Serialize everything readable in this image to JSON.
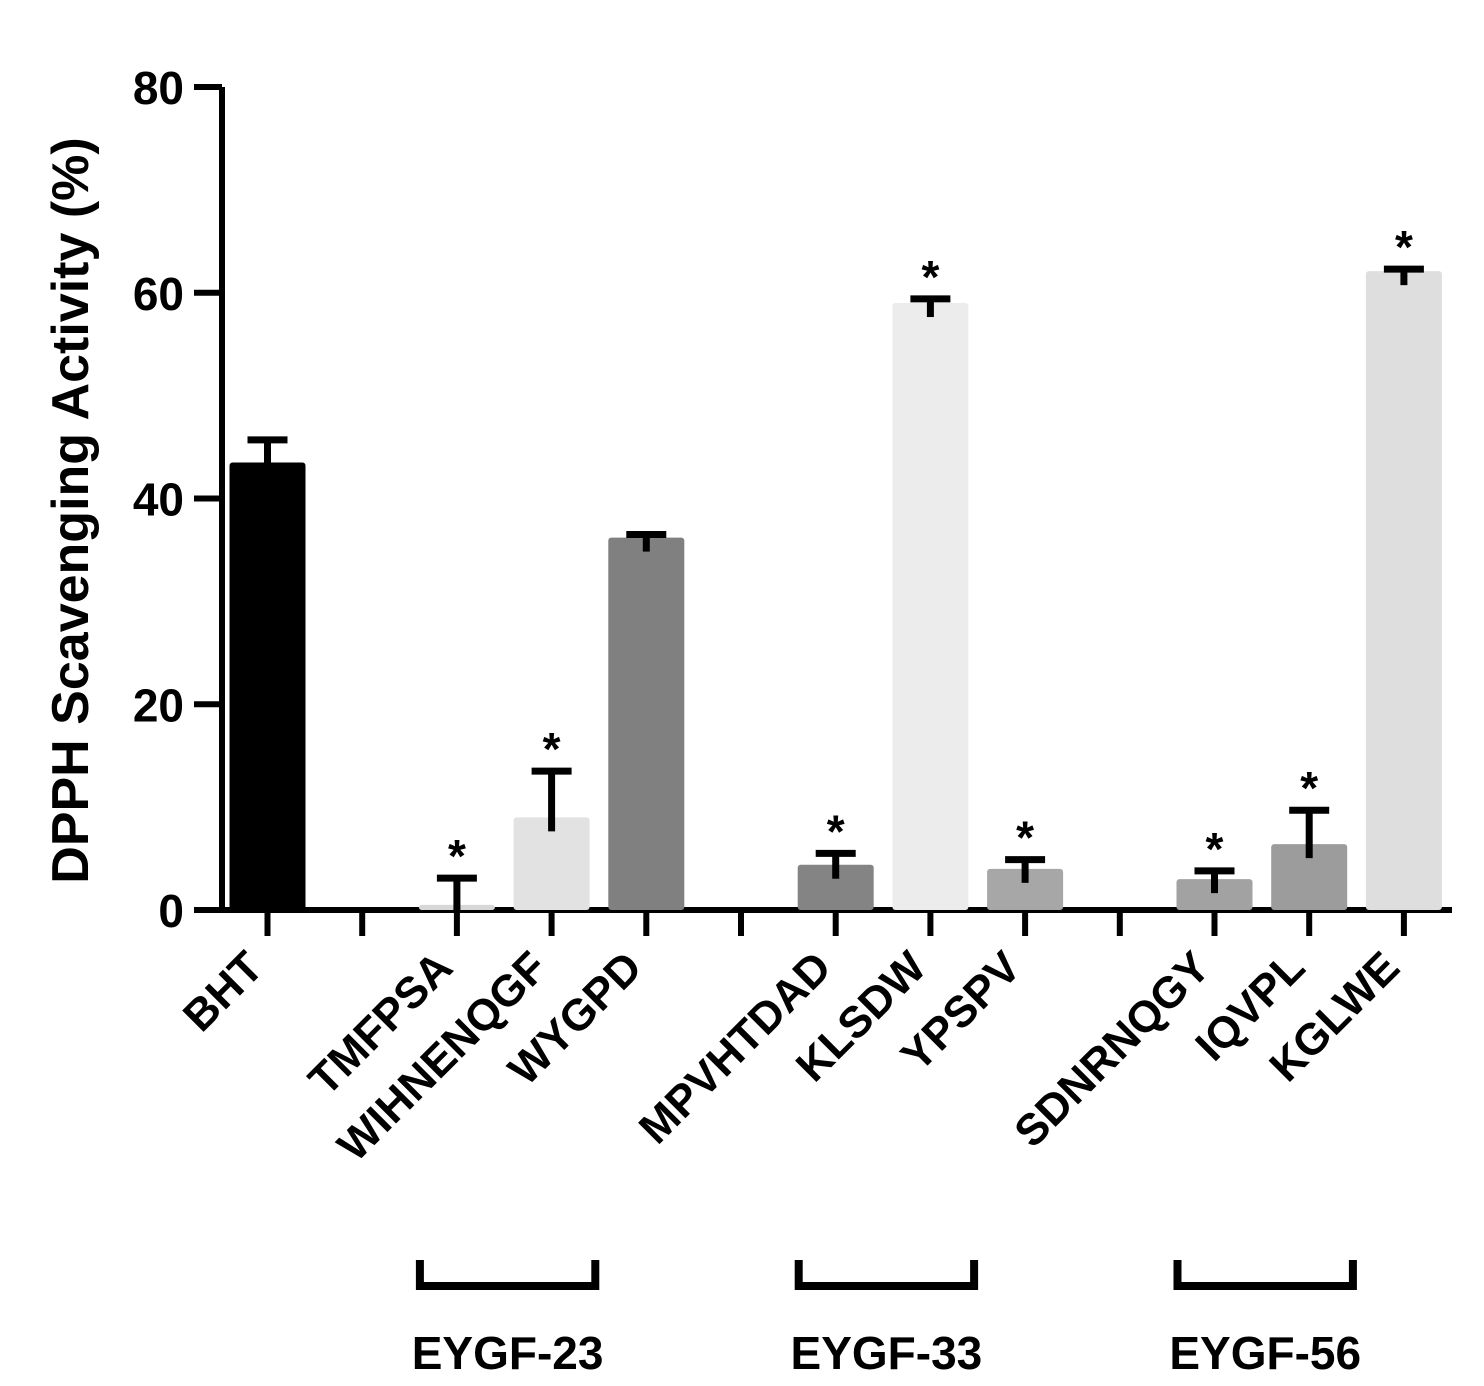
{
  "chart_data": {
    "type": "bar",
    "title": "",
    "xlabel": "",
    "ylabel": "DPPH Scavenging Activity (%)",
    "ylim": [
      0,
      80
    ],
    "yticks": [
      0,
      20,
      40,
      60,
      80
    ],
    "grid": false,
    "categories": [
      "BHT",
      "TMFPSA",
      "WIHNENQGF",
      "WYGPD",
      "MPVHTDAD",
      "KLSDW",
      "YPSPV",
      "SDNRNQGY",
      "IQVPL",
      "KGLWE"
    ],
    "values": [
      43.5,
      0.5,
      9.0,
      36.2,
      4.4,
      59.0,
      4.0,
      3.0,
      6.4,
      62.1
    ],
    "errors": [
      2.2,
      2.6,
      4.5,
      0.3,
      1.1,
      0.4,
      0.9,
      0.8,
      3.3,
      0.2
    ],
    "significance": [
      "",
      "*",
      "*",
      "",
      "*",
      "*",
      "*",
      "*",
      "*",
      "*"
    ],
    "colors": [
      "#000000",
      "#d7d7d7",
      "#e2e2e2",
      "#808080",
      "#848484",
      "#ececec",
      "#a7a7a7",
      "#a2a2a2",
      "#9c9c9c",
      "#dedede"
    ],
    "groups": [
      {
        "label": "EYGF-23",
        "members": [
          "TMFPSA",
          "WIHNENQGF",
          "WYGPD"
        ]
      },
      {
        "label": "EYGF-33",
        "members": [
          "MPVHTDAD",
          "KLSDW",
          "YPSPV"
        ]
      },
      {
        "label": "EYGF-56",
        "members": [
          "SDNRNQGY",
          "IQVPL",
          "KGLWE"
        ]
      }
    ]
  }
}
